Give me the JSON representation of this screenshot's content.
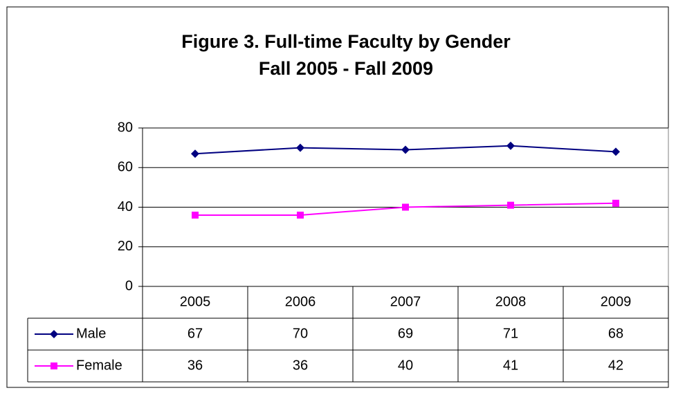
{
  "chart_data": {
    "type": "line",
    "title": "Figure 3. Full-time Faculty by Gender",
    "subtitle": "Fall 2005 - Fall 2009",
    "categories": [
      "2005",
      "2006",
      "2007",
      "2008",
      "2009"
    ],
    "series": [
      {
        "name": "Male",
        "color": "#000080",
        "marker": "diamond",
        "values": [
          67,
          70,
          69,
          71,
          68
        ]
      },
      {
        "name": "Female",
        "color": "#ff00ff",
        "marker": "square",
        "values": [
          36,
          36,
          40,
          41,
          42
        ]
      }
    ],
    "ylim": [
      0,
      80
    ],
    "yticks": [
      0,
      20,
      40,
      60,
      80
    ],
    "grid": true,
    "data_table": true
  }
}
